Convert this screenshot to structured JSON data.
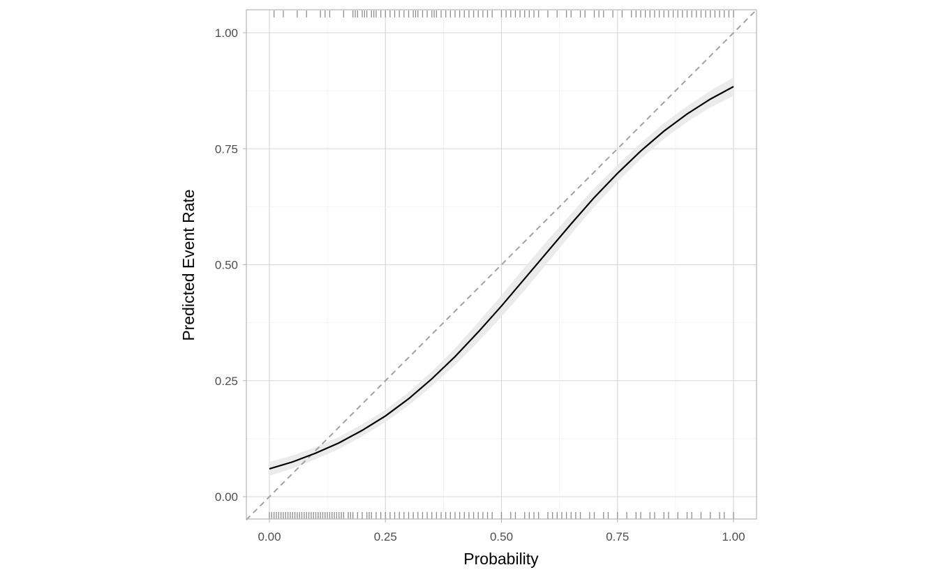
{
  "chart_data": {
    "type": "line",
    "title": "",
    "xlabel": "Probability",
    "ylabel": "Predicted Event Rate",
    "xlim": [
      -0.05,
      1.05
    ],
    "ylim": [
      -0.05,
      1.05
    ],
    "x_ticks": [
      "0.00",
      "0.25",
      "0.50",
      "0.75",
      "1.00"
    ],
    "y_ticks": [
      "0.00",
      "0.25",
      "0.50",
      "0.75",
      "1.00"
    ],
    "grid": true,
    "reference_line": {
      "style": "dashed",
      "slope": 1,
      "intercept": 0,
      "color": "#a0a0a0"
    },
    "series": [
      {
        "x": [
          0,
          0.05,
          0.1,
          0.15,
          0.2,
          0.25,
          0.3,
          0.35,
          0.4,
          0.45,
          0.5,
          0.55,
          0.6,
          0.65,
          0.7,
          0.75,
          0.8,
          0.85,
          0.9,
          0.95,
          1.0
        ],
        "y": [
          0.06,
          0.075,
          0.094,
          0.116,
          0.143,
          0.174,
          0.211,
          0.254,
          0.302,
          0.355,
          0.411,
          0.47,
          0.529,
          0.588,
          0.645,
          0.697,
          0.745,
          0.788,
          0.825,
          0.857,
          0.884
        ],
        "lower": [
          0.045,
          0.061,
          0.081,
          0.103,
          0.13,
          0.161,
          0.197,
          0.238,
          0.284,
          0.334,
          0.388,
          0.445,
          0.505,
          0.566,
          0.625,
          0.679,
          0.728,
          0.771,
          0.808,
          0.839,
          0.864
        ],
        "upper": [
          0.075,
          0.089,
          0.107,
          0.129,
          0.156,
          0.187,
          0.225,
          0.27,
          0.32,
          0.376,
          0.434,
          0.495,
          0.553,
          0.61,
          0.665,
          0.715,
          0.762,
          0.805,
          0.842,
          0.875,
          0.904
        ],
        "color": "#000000",
        "band_color": "#ebebeb"
      }
    ],
    "rug_top": [
      0.01,
      0.03,
      0.06,
      0.08,
      0.11,
      0.12,
      0.13,
      0.16,
      0.18,
      0.185,
      0.19,
      0.2,
      0.205,
      0.21,
      0.22,
      0.225,
      0.23,
      0.24,
      0.25,
      0.26,
      0.27,
      0.28,
      0.29,
      0.3,
      0.31,
      0.315,
      0.32,
      0.33,
      0.34,
      0.35,
      0.355,
      0.36,
      0.37,
      0.38,
      0.39,
      0.4,
      0.41,
      0.42,
      0.43,
      0.44,
      0.45,
      0.46,
      0.47,
      0.48,
      0.5,
      0.51,
      0.52,
      0.53,
      0.54,
      0.55,
      0.56,
      0.57,
      0.58,
      0.6,
      0.62,
      0.64,
      0.65,
      0.67,
      0.68,
      0.7,
      0.71,
      0.72,
      0.74,
      0.76,
      0.78,
      0.79,
      0.8,
      0.81,
      0.82,
      0.83,
      0.84,
      0.85,
      0.86,
      0.87,
      0.88,
      0.89,
      0.9,
      0.91,
      0.92,
      0.93,
      0.94,
      0.95,
      0.96,
      0.97,
      0.98,
      0.99,
      1.0
    ],
    "rug_bottom": [
      0.0,
      0.005,
      0.01,
      0.015,
      0.02,
      0.025,
      0.03,
      0.035,
      0.04,
      0.045,
      0.05,
      0.055,
      0.06,
      0.065,
      0.07,
      0.075,
      0.08,
      0.085,
      0.09,
      0.095,
      0.1,
      0.105,
      0.11,
      0.115,
      0.12,
      0.125,
      0.13,
      0.135,
      0.14,
      0.145,
      0.15,
      0.155,
      0.16,
      0.17,
      0.175,
      0.18,
      0.19,
      0.2,
      0.21,
      0.215,
      0.22,
      0.23,
      0.24,
      0.25,
      0.26,
      0.27,
      0.28,
      0.29,
      0.3,
      0.31,
      0.32,
      0.33,
      0.34,
      0.35,
      0.36,
      0.37,
      0.38,
      0.39,
      0.4,
      0.41,
      0.42,
      0.43,
      0.44,
      0.45,
      0.46,
      0.47,
      0.48,
      0.5,
      0.52,
      0.53,
      0.55,
      0.56,
      0.57,
      0.58,
      0.6,
      0.61,
      0.62,
      0.63,
      0.64,
      0.65,
      0.66,
      0.67,
      0.69,
      0.7,
      0.72,
      0.73,
      0.75,
      0.77,
      0.79,
      0.8,
      0.82,
      0.83,
      0.85,
      0.86,
      0.88,
      0.9,
      0.91,
      0.93,
      0.95,
      0.97,
      0.98,
      1.0
    ]
  }
}
